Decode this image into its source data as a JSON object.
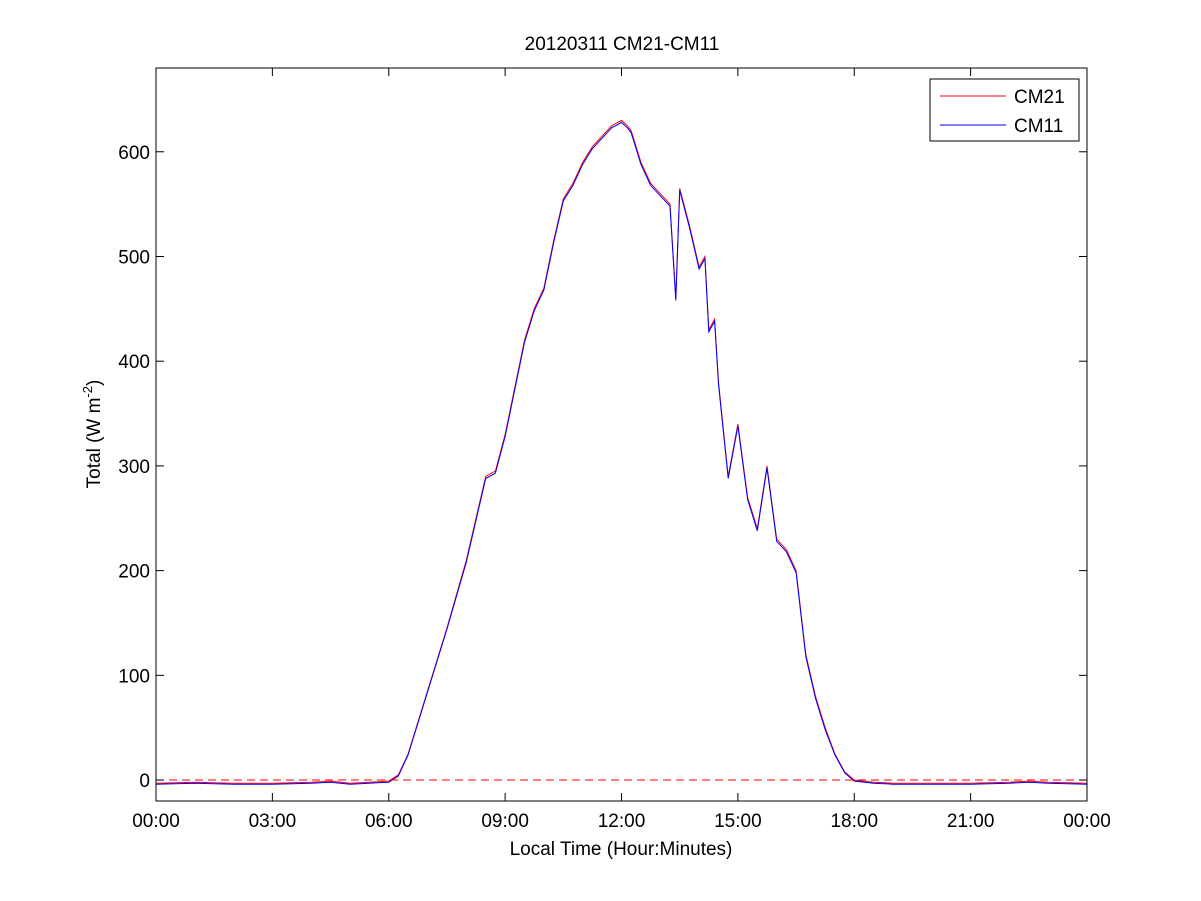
{
  "chart_data": {
    "type": "line",
    "title": "20120311 CM21-CM11",
    "xlabel": "Local Time (Hour:Minutes)",
    "ylabel_main": "Total (W m",
    "ylabel_sup": "-2",
    "ylabel_close": ")",
    "xlim": [
      0,
      24
    ],
    "ylim": [
      -20,
      680
    ],
    "x_ticks": [
      0,
      3,
      6,
      9,
      12,
      15,
      18,
      21,
      24
    ],
    "x_tick_labels": [
      "00:00",
      "03:00",
      "06:00",
      "09:00",
      "12:00",
      "15:00",
      "18:00",
      "21:00",
      "00:00"
    ],
    "y_ticks": [
      0,
      100,
      200,
      300,
      400,
      500,
      600
    ],
    "y_tick_labels": [
      "0",
      "100",
      "200",
      "300",
      "400",
      "500",
      "600"
    ],
    "grid": false,
    "legend_position": "top-right",
    "reference_line": {
      "y": 0,
      "style": "dashed",
      "color": "#ff0000"
    },
    "series": [
      {
        "name": "CM21",
        "color": "#ff0000",
        "x": [
          0,
          1,
          2,
          3,
          4,
          4.5,
          5,
          5.5,
          6,
          6.25,
          6.5,
          7,
          7.5,
          8,
          8.25,
          8.5,
          8.75,
          9,
          9.25,
          9.5,
          9.75,
          10,
          10.25,
          10.5,
          10.75,
          11,
          11.25,
          11.5,
          11.75,
          12,
          12.15,
          12.25,
          12.5,
          12.75,
          13,
          13.25,
          13.4,
          13.5,
          13.75,
          14,
          14.15,
          14.25,
          14.4,
          14.5,
          14.75,
          15,
          15.25,
          15.5,
          15.75,
          16,
          16.25,
          16.5,
          16.75,
          17,
          17.25,
          17.5,
          17.75,
          18,
          18.5,
          19,
          20,
          21,
          22,
          22.5,
          23,
          24
        ],
        "values": [
          -3,
          -2,
          -3,
          -3,
          -2,
          -1,
          -3,
          -2,
          -1,
          5,
          25,
          85,
          145,
          210,
          250,
          290,
          295,
          330,
          375,
          420,
          450,
          470,
          515,
          555,
          570,
          590,
          605,
          615,
          625,
          630,
          625,
          620,
          590,
          570,
          560,
          550,
          460,
          565,
          530,
          490,
          500,
          430,
          440,
          380,
          290,
          340,
          270,
          240,
          300,
          230,
          220,
          200,
          120,
          80,
          50,
          25,
          8,
          0,
          -2,
          -3,
          -3,
          -3,
          -2,
          -1,
          -2,
          -3
        ]
      },
      {
        "name": "CM11",
        "color": "#0000ff",
        "x": [
          0,
          1,
          2,
          3,
          4,
          4.5,
          5,
          5.5,
          6,
          6.25,
          6.5,
          7,
          7.5,
          8,
          8.25,
          8.5,
          8.75,
          9,
          9.25,
          9.5,
          9.75,
          10,
          10.25,
          10.5,
          10.75,
          11,
          11.25,
          11.5,
          11.75,
          12,
          12.15,
          12.25,
          12.5,
          12.75,
          13,
          13.25,
          13.4,
          13.5,
          13.75,
          14,
          14.15,
          14.25,
          14.4,
          14.5,
          14.75,
          15,
          15.25,
          15.5,
          15.75,
          16,
          16.25,
          16.5,
          16.75,
          17,
          17.25,
          17.5,
          17.75,
          18,
          18.5,
          19,
          20,
          21,
          22,
          22.5,
          23,
          24
        ],
        "values": [
          -4,
          -3,
          -4,
          -4,
          -3,
          -2,
          -4,
          -3,
          -2,
          4,
          24,
          84,
          144,
          208,
          248,
          288,
          293,
          328,
          373,
          418,
          448,
          468,
          513,
          553,
          568,
          588,
          603,
          613,
          623,
          628,
          623,
          618,
          588,
          568,
          558,
          548,
          458,
          563,
          528,
          488,
          498,
          428,
          438,
          378,
          288,
          338,
          268,
          238,
          298,
          228,
          218,
          198,
          118,
          78,
          48,
          24,
          7,
          -1,
          -3,
          -4,
          -4,
          -4,
          -3,
          -2,
          -3,
          -4
        ]
      }
    ]
  }
}
